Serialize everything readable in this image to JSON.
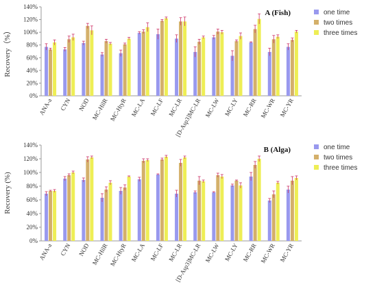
{
  "colors": {
    "one time": "#9999ee",
    "two times": "#d4b06a",
    "three times": "#eeee55",
    "error_bar": "#cc3366",
    "axis": "#999999"
  },
  "chart_data": [
    {
      "type": "bar",
      "title": "A (Fish)",
      "ylabel": "Recovery（%）",
      "xlabel": "",
      "ylim": [
        0,
        140
      ],
      "ytick_step": 20,
      "yticks": [
        "0%",
        "20%",
        "40%",
        "60%",
        "80%",
        "100%",
        "120%",
        "140%"
      ],
      "grid": false,
      "legend": "right",
      "categories": [
        "ANA-a",
        "CYN",
        "NOD",
        "MC-HilR",
        "MC-HtyR",
        "MC-LA",
        "MC-LF",
        "MC-LR",
        "[D-Asp3]MC-LR",
        "MC-LW",
        "MC-LY",
        "MC-RR",
        "MC-WR",
        "MC-YR"
      ],
      "series": [
        {
          "name": "one time",
          "values": [
            77,
            73,
            83,
            65,
            67,
            99,
            97,
            90,
            69,
            92,
            63,
            84,
            69,
            77
          ],
          "errors": [
            5,
            3,
            3,
            3,
            5,
            2,
            8,
            6,
            8,
            3,
            8,
            1,
            6,
            5
          ]
        },
        {
          "name": "two times",
          "values": [
            73,
            89,
            110,
            86,
            81,
            101,
            118,
            117,
            85,
            101,
            86,
            105,
            89,
            88
          ],
          "errors": [
            2,
            5,
            4,
            3,
            2,
            3,
            2,
            6,
            4,
            4,
            2,
            6,
            6,
            3
          ]
        },
        {
          "name": "three times",
          "values": [
            84,
            92,
            103,
            82,
            90,
            108,
            122,
            117,
            92,
            100,
            94,
            121,
            93,
            101
          ],
          "errors": [
            4,
            5,
            7,
            2,
            2,
            7,
            2,
            7,
            2,
            3,
            5,
            8,
            3,
            2
          ]
        }
      ]
    },
    {
      "type": "bar",
      "title": "B (Alga)",
      "ylabel": "Recovery (%)",
      "xlabel": "",
      "ylim": [
        0,
        140
      ],
      "ytick_step": 20,
      "yticks": [
        "0%",
        "20%",
        "40%",
        "60%",
        "80%",
        "100%",
        "120%",
        "140%"
      ],
      "grid": false,
      "legend": "right",
      "categories": [
        "ANA-a",
        "CYN",
        "NOD",
        "MC-HilR",
        "MC-HtyR",
        "MC-LA",
        "MC-LF",
        "MC-LR",
        "[D-Asp3]MC-LR",
        "MC-LW",
        "MC-LY",
        "MC-RR",
        "MC-WR",
        "MC-YR"
      ],
      "series": [
        {
          "name": "one time",
          "values": [
            69,
            91,
            89,
            63,
            73,
            90,
            97,
            69,
            71,
            71,
            81,
            94,
            59,
            75
          ],
          "errors": [
            3,
            3,
            3,
            6,
            5,
            3,
            1,
            5,
            2,
            1,
            2,
            6,
            3,
            5
          ]
        },
        {
          "name": "two times",
          "values": [
            73,
            96,
            119,
            75,
            78,
            117,
            119,
            114,
            88,
            96,
            88,
            111,
            68,
            88
          ],
          "errors": [
            1,
            2,
            4,
            4,
            4,
            3,
            2,
            5,
            6,
            3,
            1,
            5,
            5,
            6
          ]
        },
        {
          "name": "three times",
          "values": [
            73,
            100,
            122,
            85,
            94,
            118,
            123,
            122,
            87,
            94,
            81,
            120,
            85,
            92
          ],
          "errors": [
            2,
            2,
            2,
            3,
            1,
            2,
            2,
            2,
            2,
            3,
            4,
            4,
            2,
            3
          ]
        }
      ]
    }
  ]
}
